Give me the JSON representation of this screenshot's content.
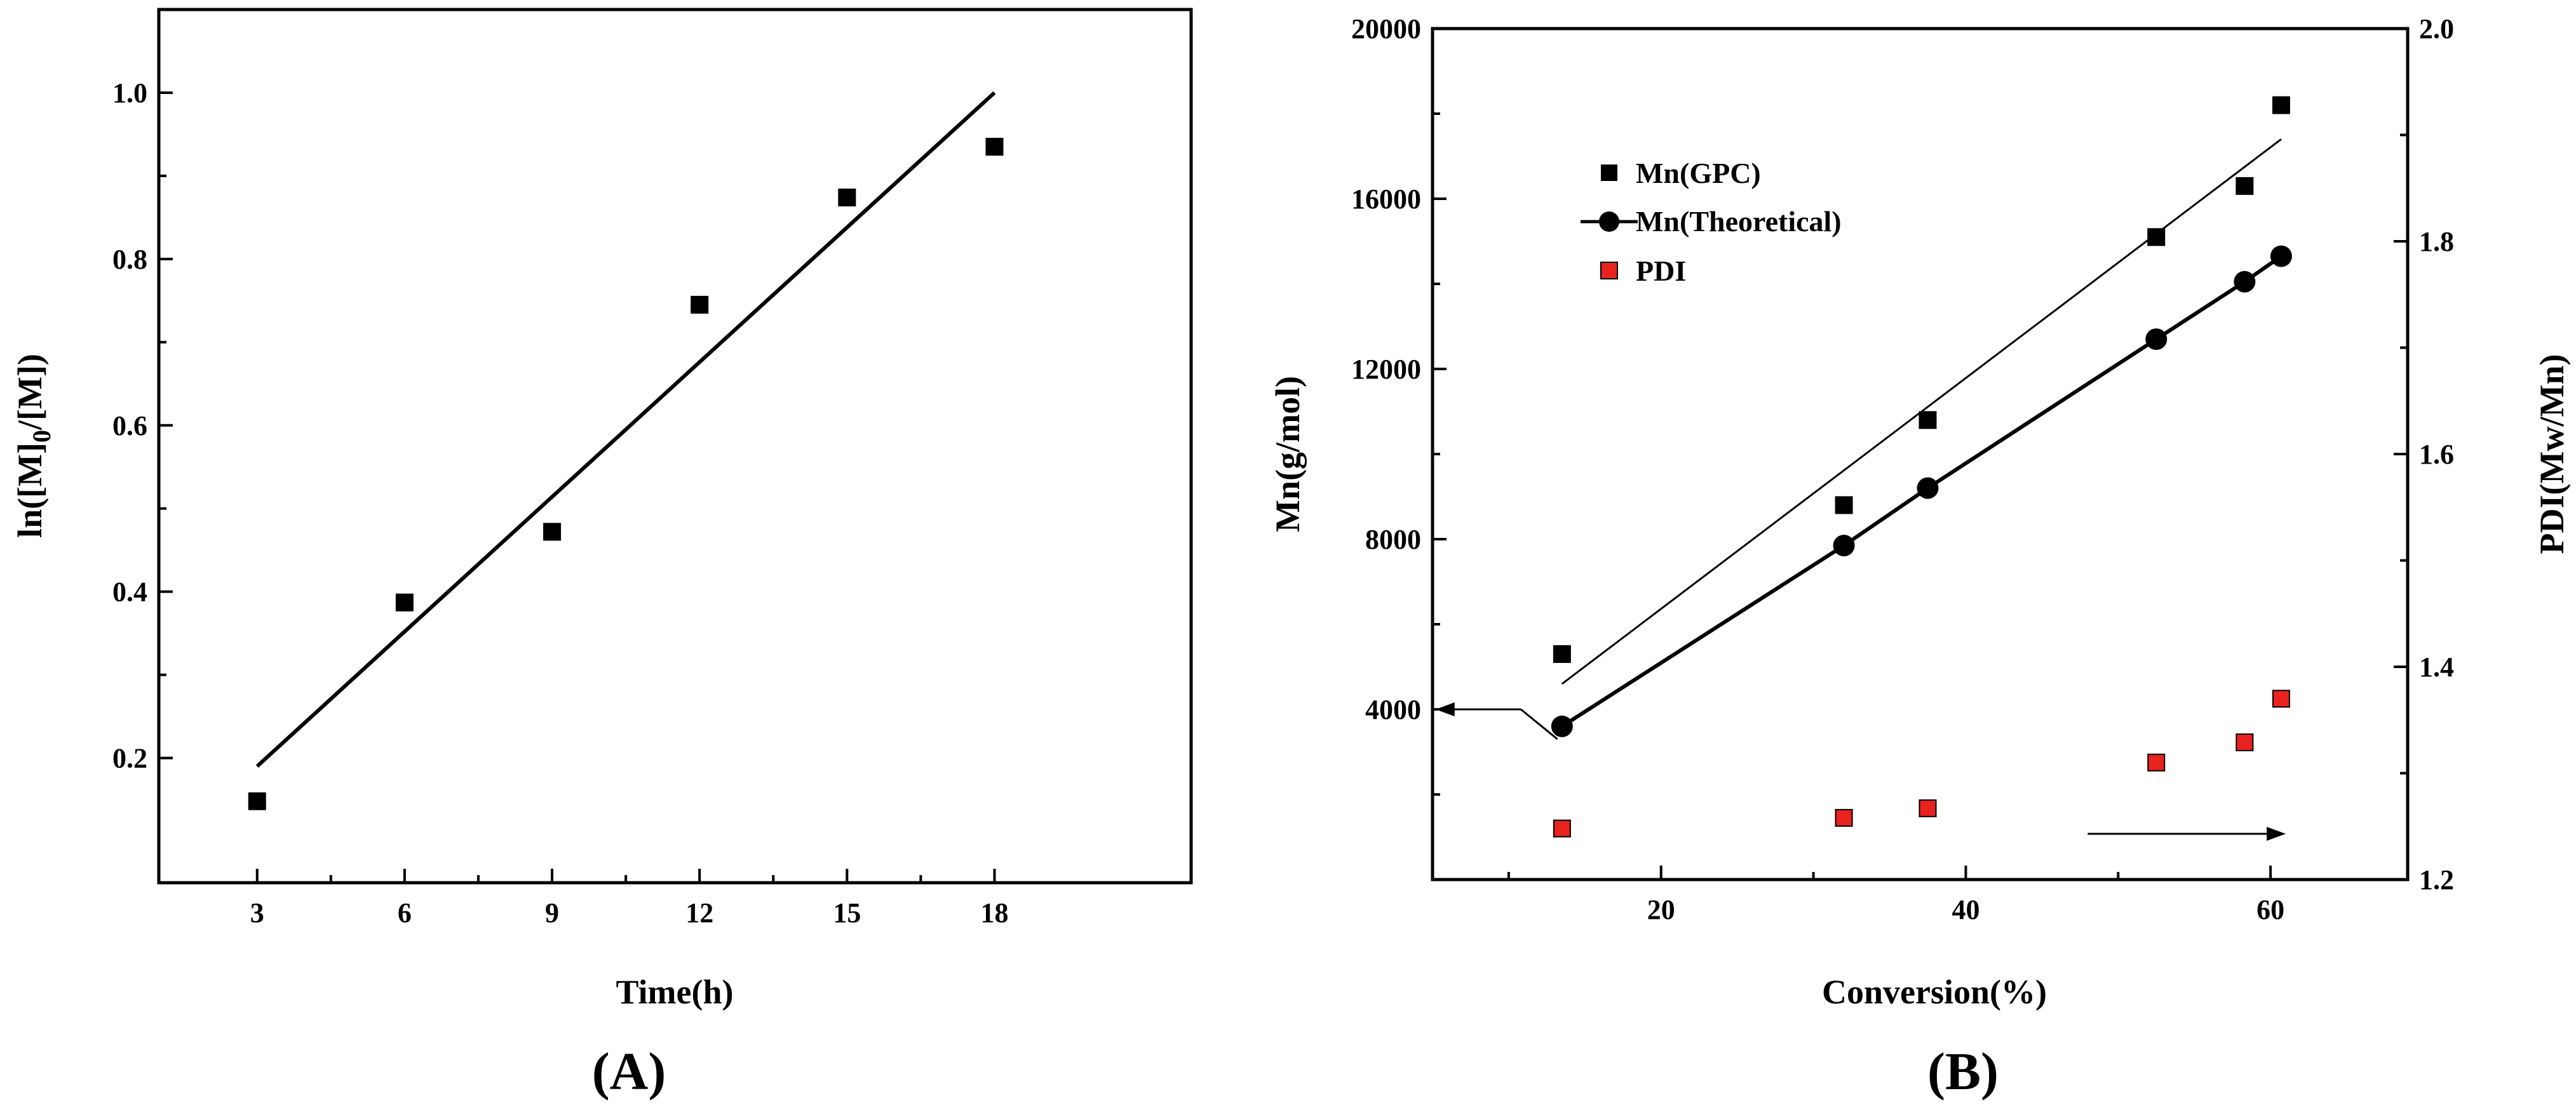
{
  "colors": {
    "black": "#000000",
    "red": "#e8231e"
  },
  "chart_data": [
    {
      "type": "scatter",
      "panel_label": "(A)",
      "xlabel": "Time(h)",
      "ylabel": "ln([M]0/[M])",
      "ylabel_parts": [
        "ln([M]",
        "0",
        "/[M])"
      ],
      "xlim": [
        1,
        22
      ],
      "ylim": [
        0.05,
        1.1
      ],
      "xticks": [
        3,
        6,
        9,
        12,
        15,
        18
      ],
      "yticks": [
        0.2,
        0.4,
        0.6,
        0.8,
        1.0
      ],
      "xtick_labels": [
        "3",
        "6",
        "9",
        "12",
        "15",
        "18"
      ],
      "ytick_labels": [
        "0.2",
        "0.4",
        "0.6",
        "0.8",
        "1.0"
      ],
      "series": [
        {
          "name": "data",
          "marker": "square",
          "color": "#000000",
          "x": [
            3,
            6,
            9,
            12,
            15,
            18
          ],
          "y": [
            0.148,
            0.387,
            0.472,
            0.745,
            0.874,
            0.935
          ]
        }
      ],
      "fit_line": {
        "x": [
          3,
          18
        ],
        "y": [
          0.19,
          1.0
        ]
      }
    },
    {
      "type": "scatter",
      "panel_label": "(B)",
      "xlabel": "Conversion(%)",
      "ylabel": "Mn(g/mol)",
      "y2label": "PDI(Mw/Mn)",
      "xlim": [
        5,
        69
      ],
      "ylim": [
        0,
        20000
      ],
      "y2lim": [
        1.2,
        2.0
      ],
      "xticks": [
        20,
        40,
        60
      ],
      "xtick_labels": [
        "20",
        "40",
        "60"
      ],
      "yticks": [
        4000,
        8000,
        12000,
        16000,
        20000
      ],
      "ytick_labels": [
        "4000",
        "8000",
        "12000",
        "16000",
        "20000"
      ],
      "y2ticks": [
        1.2,
        1.4,
        1.6,
        1.8,
        2.0
      ],
      "y2tick_labels": [
        "1.2",
        "1.4",
        "1.6",
        "1.8",
        "2.0"
      ],
      "legend": [
        "Mn(GPC)",
        "Mn(Theoretical)",
        "PDI"
      ],
      "legend_position": "top-left",
      "series": [
        {
          "name": "Mn(GPC)",
          "marker": "square",
          "color": "#000000",
          "axis": "left",
          "x": [
            13.5,
            32,
            37.5,
            52.5,
            58.3,
            60.7
          ],
          "y": [
            5300,
            8800,
            10800,
            15100,
            16300,
            18200
          ],
          "fit_line": {
            "x": [
              13.5,
              60.7
            ],
            "y": [
              4600,
              17400
            ]
          }
        },
        {
          "name": "Mn(Theoretical)",
          "marker": "circle",
          "color": "#000000",
          "axis": "left",
          "connected": true,
          "x": [
            13.5,
            32,
            37.5,
            52.5,
            58.3,
            60.7
          ],
          "y": [
            3600,
            7850,
            9200,
            12700,
            14050,
            14650
          ]
        },
        {
          "name": "PDI",
          "marker": "square",
          "color": "#e8231e",
          "axis": "right",
          "x": [
            13.5,
            32,
            37.5,
            52.5,
            58.3,
            60.7
          ],
          "y": [
            1.248,
            1.258,
            1.267,
            1.31,
            1.329,
            1.37
          ]
        }
      ],
      "annotations": [
        {
          "type": "arrow",
          "direction": "left",
          "points_to": "left-axis",
          "from": [
            10.8,
            4000
          ],
          "to": [
            5.2,
            4000
          ],
          "stem_to": [
            13.2,
            3300
          ]
        },
        {
          "type": "arrow",
          "direction": "right",
          "points_to": "right-axis",
          "from": [
            48,
            1.243
          ],
          "to": [
            61,
            1.243
          ]
        }
      ]
    }
  ]
}
